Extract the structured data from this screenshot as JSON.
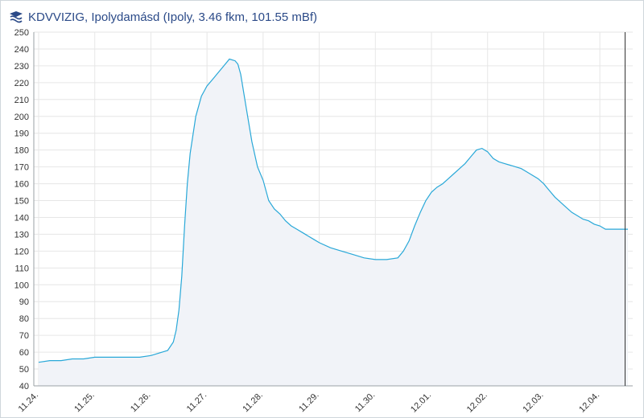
{
  "header": {
    "logo_icon": "kdvvizig-logo-icon",
    "title": "KDVVIZIG, Ipolydamásd (Ipoly, 3.46 fkm, 101.55 mBf)"
  },
  "colors": {
    "line": "#29a8d8",
    "area": "#f1f3f8",
    "grid": "#e6e6e6",
    "axis": "#9aa0a6",
    "marker": "#333333",
    "title": "#2b4a88"
  },
  "chart_data": {
    "type": "area",
    "title": "",
    "xlabel": "",
    "ylabel": "",
    "ylim": [
      40,
      250
    ],
    "yticks": [
      40,
      50,
      60,
      70,
      80,
      90,
      100,
      110,
      120,
      130,
      140,
      150,
      160,
      170,
      180,
      190,
      200,
      210,
      220,
      230,
      240,
      250
    ],
    "xticks": [
      "11.24.",
      "11.25.",
      "11.26.",
      "11.27.",
      "11.28.",
      "11.29.",
      "11.30.",
      "12.01.",
      "12.02.",
      "12.03.",
      "12.04."
    ],
    "xlim_days": [
      0,
      10.5
    ],
    "grid": true,
    "legend": "none",
    "current_time_marker_day": 10.45,
    "series": [
      {
        "x": [
          0.0,
          0.2,
          0.4,
          0.6,
          0.8,
          1.0,
          1.2,
          1.4,
          1.6,
          1.8,
          2.0,
          2.1,
          2.2,
          2.3,
          2.4,
          2.45,
          2.5,
          2.55,
          2.6,
          2.65,
          2.7,
          2.8,
          2.9,
          3.0,
          3.1,
          3.2,
          3.3,
          3.4,
          3.5,
          3.55,
          3.6,
          3.7,
          3.8,
          3.9,
          4.0,
          4.1,
          4.2,
          4.3,
          4.4,
          4.5,
          4.6,
          4.7,
          4.8,
          4.9,
          5.0,
          5.2,
          5.4,
          5.6,
          5.8,
          6.0,
          6.2,
          6.4,
          6.5,
          6.6,
          6.7,
          6.8,
          6.9,
          7.0,
          7.1,
          7.2,
          7.3,
          7.4,
          7.5,
          7.6,
          7.7,
          7.8,
          7.9,
          8.0,
          8.05,
          8.1,
          8.2,
          8.3,
          8.4,
          8.5,
          8.6,
          8.7,
          8.8,
          8.9,
          9.0,
          9.1,
          9.2,
          9.3,
          9.4,
          9.5,
          9.6,
          9.7,
          9.8,
          9.9,
          10.0,
          10.1,
          10.2,
          10.3,
          10.4,
          10.5
        ],
        "values": [
          54,
          55,
          55,
          56,
          56,
          57,
          57,
          57,
          57,
          57,
          58,
          59,
          60,
          61,
          66,
          73,
          85,
          105,
          135,
          160,
          178,
          200,
          212,
          218,
          222,
          226,
          230,
          234,
          233,
          231,
          225,
          205,
          185,
          170,
          162,
          150,
          145,
          142,
          138,
          135,
          133,
          131,
          129,
          127,
          125,
          122,
          120,
          118,
          116,
          115,
          115,
          116,
          120,
          126,
          135,
          143,
          150,
          155,
          158,
          160,
          163,
          166,
          169,
          172,
          176,
          180,
          181,
          179,
          177,
          175,
          173,
          172,
          171,
          170,
          169,
          167,
          165,
          163,
          160,
          156,
          152,
          149,
          146,
          143,
          141,
          139,
          138,
          136,
          135,
          133,
          133,
          133,
          133,
          133
        ]
      }
    ]
  }
}
